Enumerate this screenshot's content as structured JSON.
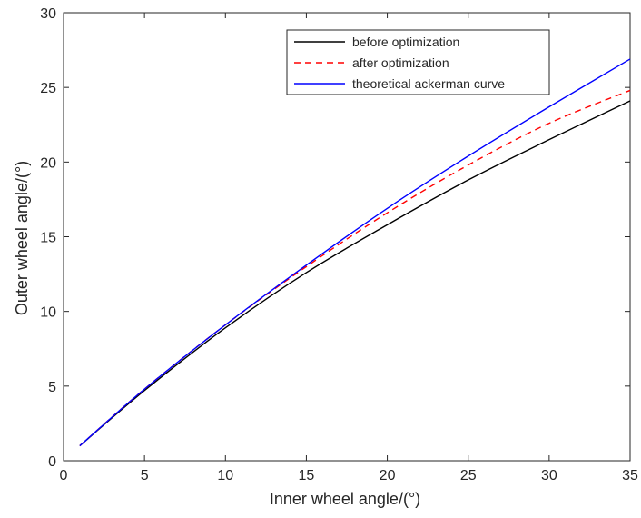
{
  "chart_data": {
    "type": "line",
    "xlabel": "Inner wheel angle/(°)",
    "ylabel": "Outer wheel angle/(°)",
    "xlim": [
      0,
      35
    ],
    "ylim": [
      0,
      30
    ],
    "xticks": [
      0,
      5,
      10,
      15,
      20,
      25,
      30,
      35
    ],
    "yticks": [
      0,
      5,
      10,
      15,
      20,
      25,
      30
    ],
    "grid": false,
    "box": true,
    "legend_position": "top-right",
    "x": [
      1,
      5,
      10,
      15,
      20,
      25,
      30,
      35
    ],
    "series": [
      {
        "name": "before optimization",
        "color": "#000000",
        "style": "solid",
        "values": [
          1.0,
          4.7,
          8.9,
          12.6,
          15.8,
          18.8,
          21.5,
          24.1
        ]
      },
      {
        "name": "after optimization",
        "color": "#ff0000",
        "style": "dashed",
        "values": [
          1.0,
          4.8,
          9.1,
          13.0,
          16.6,
          19.8,
          22.6,
          24.8
        ]
      },
      {
        "name": "theoretical ackerman curve",
        "color": "#0000ff",
        "style": "solid",
        "values": [
          1.0,
          4.8,
          9.1,
          13.1,
          16.9,
          20.4,
          23.7,
          26.9
        ]
      }
    ]
  }
}
